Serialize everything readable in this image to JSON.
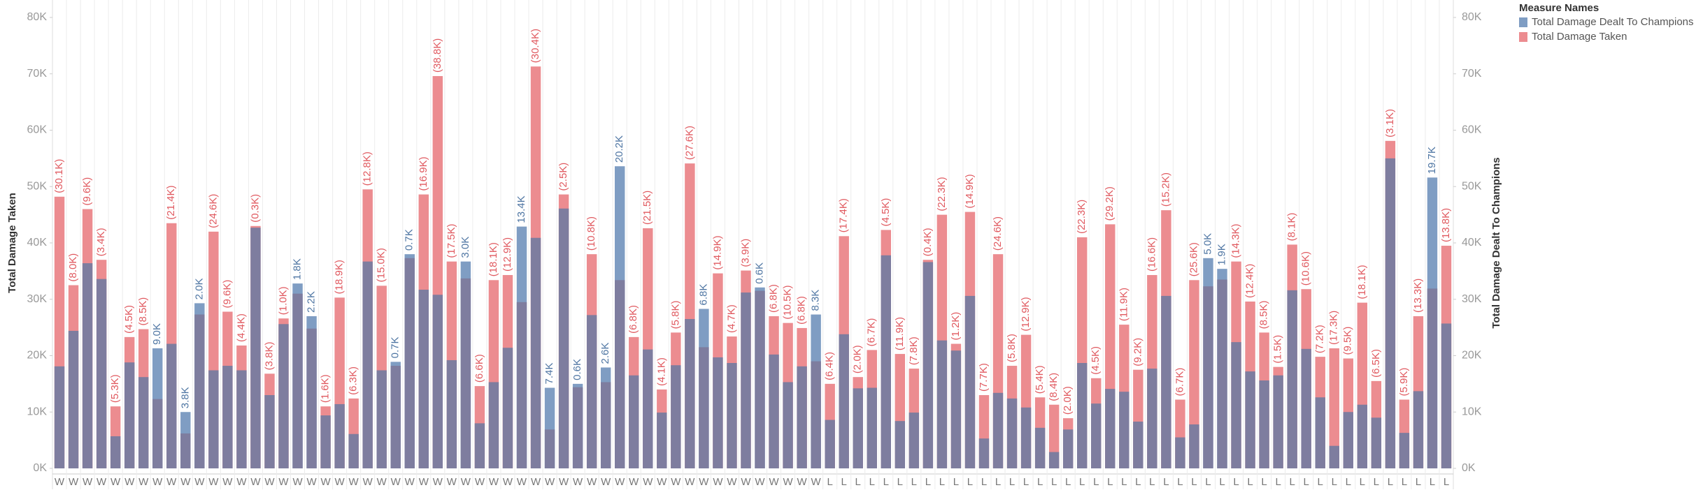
{
  "chart_data": {
    "type": "bar",
    "legend_title": "Measure Names",
    "y_label": "Total Damage Taken",
    "y2_label": "Total Damage Dealt To Champions",
    "categories": [
      "W",
      "W",
      "W",
      "W",
      "W",
      "W",
      "W",
      "W",
      "W",
      "W",
      "W",
      "W",
      "W",
      "W",
      "W",
      "W",
      "W",
      "W",
      "W",
      "W",
      "W",
      "W",
      "W",
      "W",
      "W",
      "W",
      "W",
      "W",
      "W",
      "W",
      "W",
      "W",
      "W",
      "W",
      "W",
      "W",
      "W",
      "W",
      "W",
      "W",
      "W",
      "W",
      "W",
      "W",
      "W",
      "W",
      "W",
      "W",
      "W",
      "W",
      "W",
      "W",
      "W",
      "W",
      "W",
      "L",
      "L",
      "L",
      "L",
      "L",
      "L",
      "L",
      "L",
      "L",
      "L",
      "L",
      "L",
      "L",
      "L",
      "L",
      "L",
      "L",
      "L",
      "L",
      "L",
      "L",
      "L",
      "L",
      "L",
      "L",
      "L",
      "L",
      "L",
      "L",
      "L",
      "L",
      "L",
      "L",
      "L",
      "L",
      "L",
      "L",
      "L",
      "L",
      "L",
      "L",
      "L",
      "L",
      "L",
      "L"
    ],
    "series": [
      {
        "name": "Total Damage Dealt To Champions",
        "color": "#7f9dc3",
        "label_color": "#4f76a3",
        "axis": "y2",
        "values": [
          18100,
          24400,
          36400,
          33600,
          5700,
          18800,
          16200,
          21300,
          22100,
          10000,
          29300,
          17400,
          18200,
          17400,
          42700,
          13000,
          25600,
          32800,
          27000,
          9400,
          11400,
          6100,
          36700,
          17400,
          18900,
          38000,
          31700,
          30800,
          19200,
          36700,
          8000,
          15300,
          21400,
          42900,
          40900,
          14300,
          46100,
          15000,
          27200,
          17900,
          53600,
          16500,
          21100,
          9900,
          18300,
          26500,
          28300,
          19700,
          18700,
          31200,
          32100,
          20200,
          15300,
          18100,
          27300,
          8600,
          23800,
          14200,
          14300,
          37800,
          8400,
          9900,
          36600,
          22700,
          20900,
          30600,
          5300,
          13400,
          12400,
          10800,
          7200,
          2900,
          6900,
          18700,
          11500,
          14100,
          13600,
          8300,
          17700,
          30600,
          5500,
          7800,
          37300,
          35400,
          22400,
          17200,
          15600,
          16500,
          31600,
          21200,
          12600,
          4000,
          10000,
          11300,
          9000,
          55000,
          6300,
          13700,
          51600,
          25700
        ]
      },
      {
        "name": "Total Damage Taken",
        "color": "#ec8c90",
        "label_color": "#e0595f",
        "values": [
          48200,
          32500,
          46000,
          37000,
          11000,
          23300,
          24700,
          12300,
          43500,
          6200,
          27300,
          42000,
          27800,
          21800,
          43000,
          16800,
          26600,
          31000,
          24800,
          11000,
          30300,
          12400,
          49500,
          32400,
          18200,
          37300,
          48600,
          69600,
          36700,
          33700,
          14600,
          33400,
          34300,
          29500,
          71300,
          6900,
          48600,
          14400,
          38000,
          15300,
          33400,
          23300,
          42600,
          14000,
          24100,
          54100,
          21500,
          34600,
          23400,
          35100,
          31500,
          27000,
          25800,
          24900,
          19000,
          15000,
          41200,
          16200,
          21000,
          42300,
          20300,
          17700,
          37000,
          45000,
          22100,
          45500,
          13000,
          38000,
          18200,
          23700,
          12600,
          11300,
          8900,
          41000,
          16000,
          43300,
          25500,
          17500,
          34300,
          45800,
          12200,
          33400,
          32300,
          33500,
          36700,
          29600,
          24100,
          18000,
          39700,
          31800,
          19800,
          21300,
          19500,
          29400,
          15500,
          58100,
          12200,
          27000,
          31900,
          39500
        ]
      }
    ],
    "overlap_color": "#7e7d9f",
    "bar_labels": [
      "(30.1K)",
      "(8.0K)",
      "(9.6K)",
      "(3.4K)",
      "(5.3K)",
      "(4.5K)",
      "(8.5K)",
      "9.0K",
      "(21.4K)",
      "3.8K",
      "2.0K",
      "(24.6K)",
      "(9.6K)",
      "(4.4K)",
      "(0.3K)",
      "(3.8K)",
      "(1.0K)",
      "1.8K",
      "2.2K",
      "(1.6K)",
      "(18.9K)",
      "(6.3K)",
      "(12.8K)",
      "(15.0K)",
      "0.7K",
      "0.7K",
      "(16.9K)",
      "(38.8K)",
      "(17.5K)",
      "3.0K",
      "(6.6K)",
      "(18.1K)",
      "(12.9K)",
      "13.4K",
      "(30.4K)",
      "7.4K",
      "(2.5K)",
      "0.6K",
      "(10.8K)",
      "2.6K",
      "20.2K",
      "(6.8K)",
      "(21.5K)",
      "(4.1K)",
      "(5.8K)",
      "(27.6K)",
      "6.8K",
      "(14.9K)",
      "(4.7K)",
      "(3.9K)",
      "0.6K",
      "(6.8K)",
      "(10.5K)",
      "(6.8K)",
      "8.3K",
      "(6.4K)",
      "(17.4K)",
      "(2.0K)",
      "(6.7K)",
      "(4.5K)",
      "(11.9K)",
      "(7.8K)",
      "(0.4K)",
      "(22.3K)",
      "(1.2K)",
      "(14.9K)",
      "(7.7K)",
      "(24.6K)",
      "(5.8K)",
      "(12.9K)",
      "(5.4K)",
      "(8.4K)",
      "(2.0K)",
      "(22.3K)",
      "(4.5K)",
      "(29.2K)",
      "(11.9K)",
      "(9.2K)",
      "(16.6K)",
      "(15.2K)",
      "(6.7K)",
      "(25.6K)",
      "5.0K",
      "1.9K",
      "(14.3K)",
      "(12.4K)",
      "(8.5K)",
      "(1.5K)",
      "(8.1K)",
      "(10.6K)",
      "(7.2K)",
      "(17.3K)",
      "(9.5K)",
      "(18.1K)",
      "(6.5K)",
      "(3.1K)",
      "(5.9K)",
      "(13.3K)",
      "19.7K",
      "(13.8K)"
    ],
    "ylim": [
      0,
      80000
    ],
    "yticks": [
      {
        "value": 0,
        "label": "0K"
      },
      {
        "value": 10000,
        "label": "10K"
      },
      {
        "value": 20000,
        "label": "20K"
      },
      {
        "value": 30000,
        "label": "30K"
      },
      {
        "value": 40000,
        "label": "40K"
      },
      {
        "value": 50000,
        "label": "50K"
      },
      {
        "value": 60000,
        "label": "60K"
      },
      {
        "value": 70000,
        "label": "70K"
      },
      {
        "value": 80000,
        "label": "80K"
      }
    ],
    "y2lim": [
      0,
      80000
    ],
    "y2ticks": [
      {
        "value": 0,
        "label": "0K"
      },
      {
        "value": 10000,
        "label": "10K"
      },
      {
        "value": 20000,
        "label": "20K"
      },
      {
        "value": 30000,
        "label": "30K"
      },
      {
        "value": 40000,
        "label": "40K"
      },
      {
        "value": 50000,
        "label": "50K"
      },
      {
        "value": 60000,
        "label": "60K"
      },
      {
        "value": 70000,
        "label": "70K"
      },
      {
        "value": 80000,
        "label": "80K"
      }
    ],
    "grid": "vertical",
    "legend": "top-right"
  }
}
